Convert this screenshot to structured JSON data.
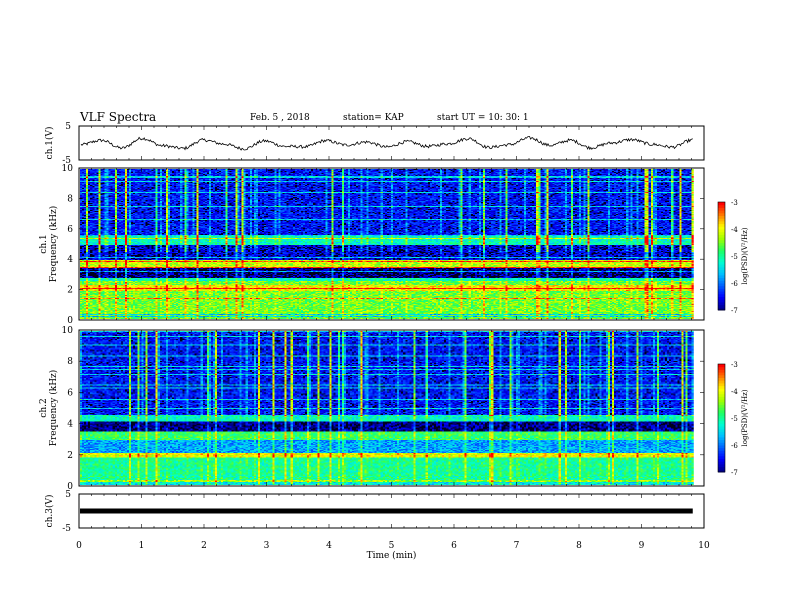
{
  "header": {
    "title": "VLF Spectra",
    "date": "Feb. 5 , 2018",
    "station": "station= KAP",
    "start": "start UT =   10: 30: 1"
  },
  "chart_data": [
    {
      "type": "line",
      "panel": "ch1-waveform",
      "ylabel": "ch.1(V)",
      "ylim": [
        -5,
        5
      ],
      "yticks": [
        "5",
        "-5"
      ],
      "xlim": [
        0,
        10
      ],
      "series": [
        {
          "values": [
            -0.5,
            0.8,
            -1.5,
            1.4,
            -0.8,
            -1.6,
            0.9,
            -0.3,
            -1.7,
            0.6,
            -1.0,
            -1.1,
            0.7,
            -0.6,
            0.3,
            -1.2,
            0.4,
            -1.0,
            -0.2,
            1.3,
            -1.3,
            -0.5,
            1.5,
            -0.7,
            0.8,
            -1.4,
            0.0,
            1.0,
            -0.4,
            -1.2,
            0.9
          ]
        }
      ],
      "color": "#000000"
    },
    {
      "type": "heatmap",
      "panel": "ch1-spectrogram",
      "ylabel": "ch.1\nFrequency (kHz)",
      "ylim": [
        0,
        10
      ],
      "yticks": [
        "0",
        "2",
        "4",
        "6",
        "8",
        "10"
      ],
      "xlim": [
        0,
        10
      ],
      "colorbar": {
        "label": "log(PSD)(V²/Hz)",
        "range": [
          -7,
          -3
        ],
        "ticks": [
          "-3",
          "-4",
          "-5",
          "-6",
          "-7"
        ]
      }
    },
    {
      "type": "heatmap",
      "panel": "ch2-spectrogram",
      "ylabel": "ch.2\nFrequency (kHz)",
      "ylim": [
        0,
        10
      ],
      "yticks": [
        "0",
        "2",
        "4",
        "6",
        "8",
        "10"
      ],
      "xlim": [
        0,
        10
      ],
      "colorbar": {
        "label": "log(PSD)(V²/Hz)",
        "range": [
          -7,
          -3
        ],
        "ticks": [
          "-3",
          "-4",
          "-5",
          "-6",
          "-7"
        ]
      }
    },
    {
      "type": "line",
      "panel": "ch3-waveform",
      "ylabel": "ch.3(V)",
      "ylim": [
        -5,
        5
      ],
      "yticks": [
        "5",
        "-5"
      ],
      "xlabel": "Time (min)",
      "xlim": [
        0,
        10
      ],
      "xticks": [
        "0",
        "1",
        "2",
        "3",
        "4",
        "5",
        "6",
        "7",
        "8",
        "9",
        "10"
      ],
      "series": [
        {
          "values": [
            0,
            0
          ]
        }
      ],
      "color": "#000000"
    }
  ],
  "colors": {
    "colormap": [
      "#000000",
      "#00008a",
      "#0000ff",
      "#0060ff",
      "#00c0ff",
      "#00ffd0",
      "#20ff60",
      "#a0ff00",
      "#ffff00",
      "#ff8000",
      "#ff0000",
      "#ffffff"
    ],
    "line": "#000000"
  }
}
